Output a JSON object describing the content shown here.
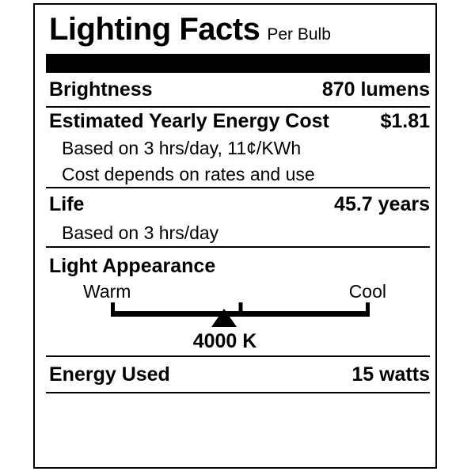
{
  "colors": {
    "ink": "#000000",
    "paper": "#ffffff"
  },
  "label": {
    "title": "Lighting Facts",
    "subtitle": "Per Bulb",
    "rows": {
      "brightness": {
        "label": "Brightness",
        "value": "870 lumens"
      },
      "energy_cost": {
        "label": "Estimated Yearly Energy Cost",
        "value": "$1.81",
        "notes": [
          "Based on 3 hrs/day, 11¢/KWh",
          "Cost depends on rates and use"
        ]
      },
      "life": {
        "label": "Life",
        "value": "45.7 years",
        "notes": [
          "Based on 3 hrs/day"
        ]
      },
      "light_appearance": {
        "label": "Light Appearance",
        "warm_label": "Warm",
        "cool_label": "Cool",
        "kelvin": "4000 K",
        "marker_position_pct": 43.7
      },
      "energy_used": {
        "label": "Energy Used",
        "value": "15 watts"
      }
    }
  }
}
